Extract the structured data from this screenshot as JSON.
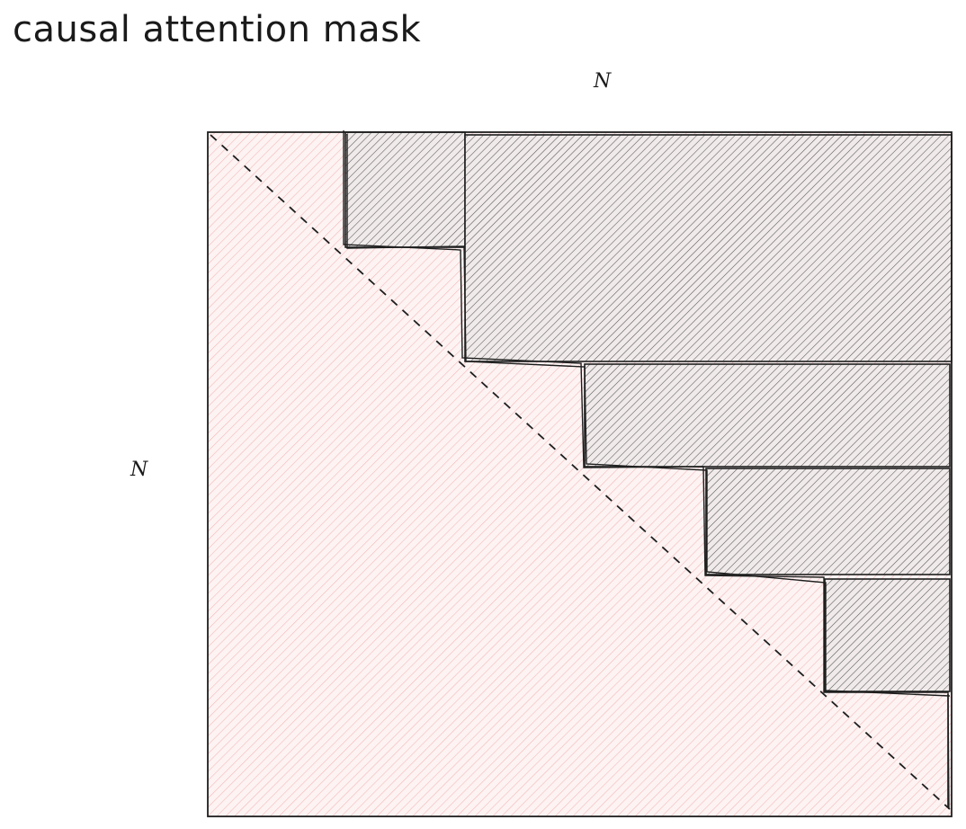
{
  "title": "causal attention mask",
  "axis_labels": {
    "top": "N",
    "left": "N"
  },
  "colors": {
    "lower_fill_hatch": "#f4b8b8",
    "masked_hatch": "#555555",
    "masked_bg": "#f3eded",
    "stroke": "#1e1e1e"
  },
  "masked_blocks": [
    {
      "name": "masked-block-1"
    },
    {
      "name": "masked-block-2"
    },
    {
      "name": "masked-block-3"
    },
    {
      "name": "masked-block-4"
    },
    {
      "name": "masked-block-5"
    },
    {
      "name": "masked-block-6"
    }
  ]
}
